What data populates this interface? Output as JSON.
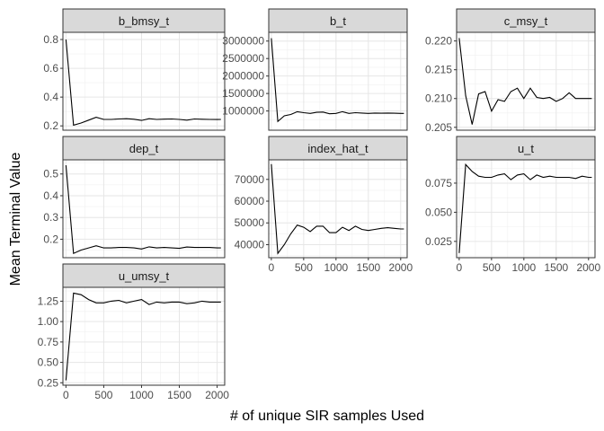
{
  "chart_data": {
    "type": "line",
    "xlabel": "# of unique SIR samples Used",
    "ylabel": "Mean Terminal Value",
    "grid": true,
    "x_shared": {
      "xlim": [
        -40,
        2100
      ],
      "ticks": [
        0,
        500,
        1000,
        1500,
        2000
      ],
      "tick_labels": [
        "0",
        "500",
        "1000",
        "1500",
        "2000"
      ]
    },
    "x": [
      0,
      100,
      200,
      300,
      400,
      500,
      600,
      700,
      800,
      900,
      1000,
      1100,
      1200,
      1300,
      1400,
      1500,
      1600,
      1700,
      1800,
      1900,
      2000,
      2050
    ],
    "panels": [
      {
        "title": "b_bmsy_t",
        "ylim": [
          0.17,
          0.85
        ],
        "yticks": [
          0.2,
          0.4,
          0.6,
          0.8
        ],
        "ytick_labels": [
          "0.2",
          "0.4",
          "0.6",
          "0.8"
        ],
        "values": [
          0.8,
          0.205,
          0.22,
          0.24,
          0.26,
          0.245,
          0.245,
          0.248,
          0.25,
          0.246,
          0.238,
          0.25,
          0.245,
          0.247,
          0.248,
          0.245,
          0.24,
          0.248,
          0.246,
          0.245,
          0.244,
          0.245
        ]
      },
      {
        "title": "b_t",
        "ylim": [
          450000,
          3250000
        ],
        "yticks": [
          1000000,
          1500000,
          2000000,
          2500000,
          3000000
        ],
        "ytick_labels": [
          "1000000",
          "1500000",
          "2000000",
          "2500000",
          "3000000"
        ],
        "values": [
          3080000,
          700000,
          860000,
          900000,
          980000,
          950000,
          930000,
          960000,
          970000,
          920000,
          930000,
          980000,
          930000,
          950000,
          940000,
          930000,
          940000,
          935000,
          940000,
          935000,
          930000,
          930000
        ]
      },
      {
        "title": "c_msy_t",
        "ylim": [
          0.2045,
          0.2215
        ],
        "yticks": [
          0.205,
          0.21,
          0.215,
          0.22
        ],
        "ytick_labels": [
          "0.205",
          "0.210",
          "0.215",
          "0.220"
        ],
        "values": [
          0.2205,
          0.2105,
          0.2055,
          0.2108,
          0.2112,
          0.2078,
          0.2098,
          0.2095,
          0.2112,
          0.2118,
          0.21,
          0.2118,
          0.2102,
          0.21,
          0.2102,
          0.2095,
          0.21,
          0.211,
          0.21,
          0.21,
          0.21,
          0.21
        ]
      },
      {
        "title": "dep_t",
        "ylim": [
          0.115,
          0.565
        ],
        "yticks": [
          0.2,
          0.3,
          0.4,
          0.5
        ],
        "ytick_labels": [
          "0.2",
          "0.3",
          "0.4",
          "0.5"
        ],
        "values": [
          0.54,
          0.135,
          0.15,
          0.16,
          0.17,
          0.16,
          0.16,
          0.162,
          0.162,
          0.16,
          0.155,
          0.165,
          0.16,
          0.162,
          0.16,
          0.158,
          0.164,
          0.162,
          0.162,
          0.162,
          0.16,
          0.16
        ]
      },
      {
        "title": "index_hat_t",
        "ylim": [
          34000,
          79000
        ],
        "yticks": [
          40000,
          50000,
          60000,
          70000
        ],
        "ytick_labels": [
          "40000",
          "50000",
          "60000",
          "70000"
        ],
        "values": [
          77000,
          36000,
          40000,
          45000,
          49000,
          48000,
          46000,
          48500,
          48500,
          45500,
          45500,
          48000,
          46500,
          48500,
          47000,
          46500,
          47000,
          47500,
          47800,
          47500,
          47200,
          47200
        ]
      },
      {
        "title": "u_t",
        "ylim": [
          0.011,
          0.095
        ],
        "yticks": [
          0.025,
          0.05,
          0.075
        ],
        "ytick_labels": [
          "0.025",
          "0.050",
          "0.075"
        ],
        "values": [
          0.015,
          0.091,
          0.085,
          0.081,
          0.08,
          0.08,
          0.082,
          0.083,
          0.078,
          0.082,
          0.083,
          0.078,
          0.082,
          0.08,
          0.081,
          0.08,
          0.08,
          0.08,
          0.079,
          0.081,
          0.08,
          0.08
        ]
      },
      {
        "title": "u_umsy_t",
        "ylim": [
          0.22,
          1.42
        ],
        "yticks": [
          0.25,
          0.5,
          0.75,
          1.0,
          1.25
        ],
        "ytick_labels": [
          "0.25",
          "0.50",
          "0.75",
          "1.00",
          "1.25"
        ],
        "values": [
          0.28,
          1.35,
          1.33,
          1.27,
          1.23,
          1.23,
          1.25,
          1.26,
          1.23,
          1.25,
          1.27,
          1.21,
          1.24,
          1.23,
          1.24,
          1.24,
          1.22,
          1.23,
          1.25,
          1.24,
          1.24,
          1.24
        ]
      }
    ]
  }
}
